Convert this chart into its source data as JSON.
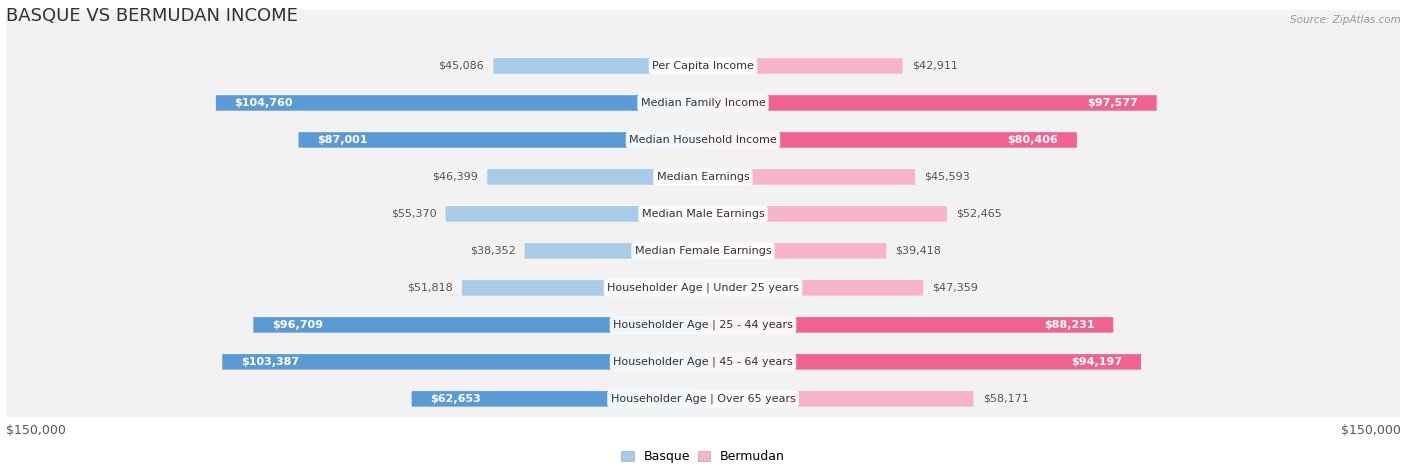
{
  "title": "BASQUE VS BERMUDAN INCOME",
  "source": "Source: ZipAtlas.com",
  "categories": [
    "Per Capita Income",
    "Median Family Income",
    "Median Household Income",
    "Median Earnings",
    "Median Male Earnings",
    "Median Female Earnings",
    "Householder Age | Under 25 years",
    "Householder Age | 25 - 44 years",
    "Householder Age | 45 - 64 years",
    "Householder Age | Over 65 years"
  ],
  "basque_values": [
    45086,
    104760,
    87001,
    46399,
    55370,
    38352,
    51818,
    96709,
    103387,
    62653
  ],
  "bermudan_values": [
    42911,
    97577,
    80406,
    45593,
    52465,
    39418,
    47359,
    88231,
    94197,
    58171
  ],
  "basque_light": "#a8cce8",
  "basque_dark": "#5b9bd5",
  "bermudan_light": "#f7b3cc",
  "bermudan_dark": "#f06292",
  "max_value": 150000,
  "bg_color": "#ffffff",
  "row_bg": "#f2f2f2",
  "row_border": "#d8d8d8",
  "xlabel_left": "$150,000",
  "xlabel_right": "$150,000",
  "legend_basque": "Basque",
  "legend_bermudan": "Bermudan",
  "title_fontsize": 13,
  "cat_fontsize": 8,
  "val_fontsize": 8,
  "axis_label_fontsize": 9,
  "dark_threshold": 62000
}
